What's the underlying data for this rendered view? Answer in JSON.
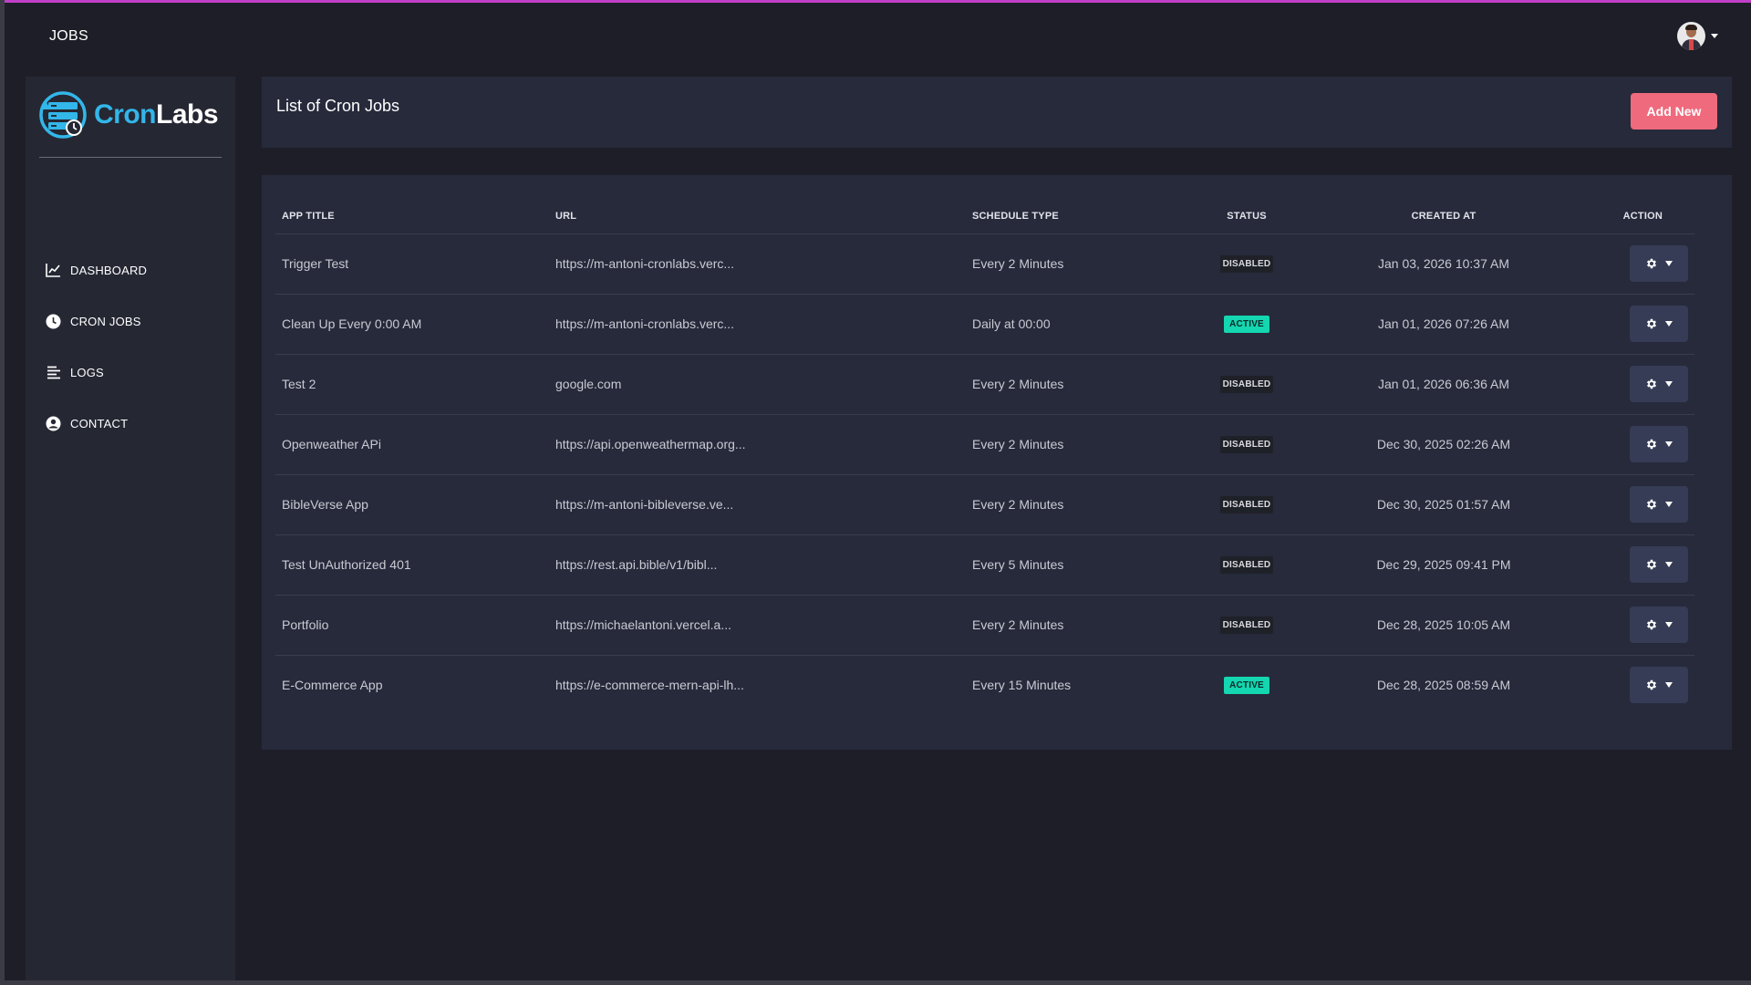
{
  "topbar": {
    "title": "JOBS",
    "user_icon": "avatar",
    "user_caret_icon": "caret-down-icon"
  },
  "sidebar": {
    "logo": {
      "part1": "Cron",
      "part2": "Labs",
      "icon": "server-clock-logo-icon"
    },
    "items": [
      {
        "label": "DASHBOARD",
        "icon": "chart-line-icon"
      },
      {
        "label": "CRON JOBS",
        "icon": "clock-icon"
      },
      {
        "label": "LOGS",
        "icon": "list-lines-icon"
      },
      {
        "label": "CONTACT",
        "icon": "user-circle-icon"
      }
    ]
  },
  "header": {
    "title": "List of Cron Jobs",
    "add_button": "Add New"
  },
  "table": {
    "columns": {
      "app_title": "APP TITLE",
      "url": "URL",
      "schedule_type": "SCHEDULE TYPE",
      "status": "STATUS",
      "created_at": "CREATED AT",
      "action": "ACTION"
    },
    "rows": [
      {
        "title": "Trigger Test",
        "url": "https://m-antoni-cronlabs.verc...",
        "schedule": "Every 2 Minutes",
        "status": "DISABLED",
        "created": "Jan 03, 2026 10:37 AM"
      },
      {
        "title": "Clean Up Every 0:00 AM",
        "url": "https://m-antoni-cronlabs.verc...",
        "schedule": "Daily at 00:00",
        "status": "ACTIVE",
        "created": "Jan 01, 2026 07:26 AM"
      },
      {
        "title": "Test 2",
        "url": "google.com",
        "schedule": "Every 2 Minutes",
        "status": "DISABLED",
        "created": "Jan 01, 2026 06:36 AM"
      },
      {
        "title": "Openweather APi",
        "url": "https://api.openweathermap.org...",
        "schedule": "Every 2 Minutes",
        "status": "DISABLED",
        "created": "Dec 30, 2025 02:26 AM"
      },
      {
        "title": "BibleVerse App",
        "url": "https://m-antoni-bibleverse.ve...",
        "schedule": "Every 2 Minutes",
        "status": "DISABLED",
        "created": "Dec 30, 2025 01:57 AM"
      },
      {
        "title": "Test UnAuthorized 401",
        "url": "https://rest.api.bible/v1/bibl...",
        "schedule": "Every 5 Minutes",
        "status": "DISABLED",
        "created": "Dec 29, 2025 09:41 PM"
      },
      {
        "title": "Portfolio",
        "url": "https://michaelantoni.vercel.a...",
        "schedule": "Every 2 Minutes",
        "status": "DISABLED",
        "created": "Dec 28, 2025 10:05 AM"
      },
      {
        "title": "E-Commerce App",
        "url": "https://e-commerce-mern-api-lh...",
        "schedule": "Every 15 Minutes",
        "status": "ACTIVE",
        "created": "Dec 28, 2025 08:59 AM"
      }
    ],
    "action_icon": "gear-icon",
    "action_caret_icon": "caret-down-icon"
  },
  "colors": {
    "accent_pink": "#ef6a7d",
    "active_badge": "#14d6b0",
    "logo_blue": "#33b6e9",
    "top_line": "#c040c8"
  }
}
